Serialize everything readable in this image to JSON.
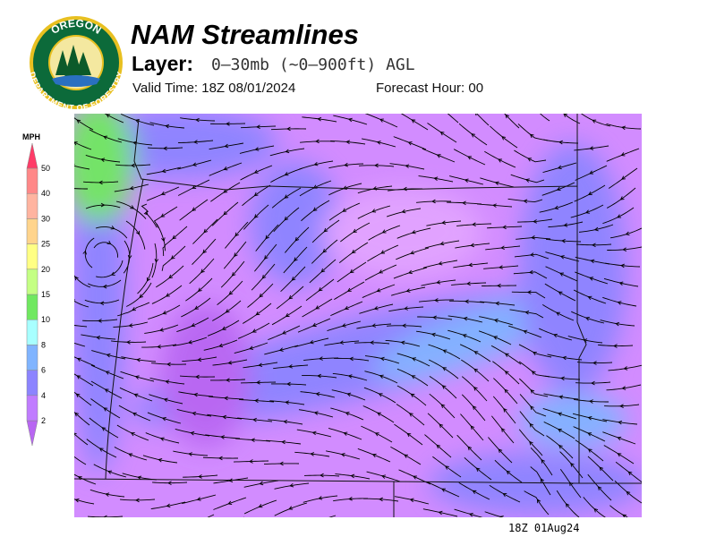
{
  "header": {
    "title": "NAM Streamlines",
    "layer_label": "Layer:",
    "layer_value": "0–30mb (~0–900ft) AGL",
    "valid_time": "Valid Time: 18Z 08/01/2024",
    "forecast_hour": "Forecast Hour: 00"
  },
  "logo": {
    "top_text": "OREGON",
    "bottom_text": "DEPARTMENT OF FORESTRY"
  },
  "legend": {
    "unit": "MPH",
    "levels": [
      2,
      4,
      6,
      8,
      10,
      15,
      20,
      25,
      30,
      40,
      50
    ],
    "colors": [
      "#b866f2",
      "#c07cff",
      "#8c84ff",
      "#80b4ff",
      "#a8ffff",
      "#70e860",
      "#c4ff84",
      "#ffff84",
      "#ffd48c",
      "#ffb4a0",
      "#ff8888",
      "#ff3c68"
    ]
  },
  "footer": {
    "timestamp": "18Z 01Aug24"
  }
}
